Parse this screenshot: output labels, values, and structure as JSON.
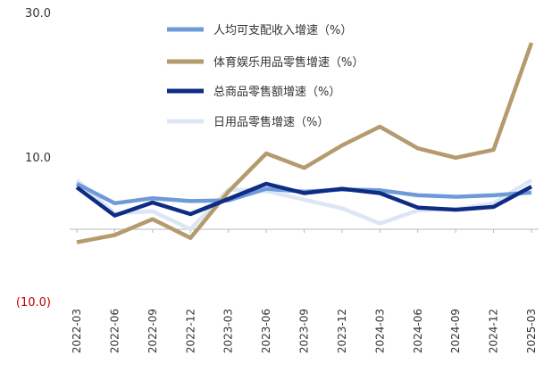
{
  "chart_data": {
    "type": "line",
    "title": "",
    "xlabel": "",
    "ylabel": "",
    "ylim": [
      -10,
      30
    ],
    "y_ticks": [
      {
        "value": 30,
        "label": "30.0"
      },
      {
        "value": 10,
        "label": "10.0"
      },
      {
        "value": -10,
        "label": "(10.0)"
      }
    ],
    "negative_tick_color": "#c00000",
    "grid": false,
    "legend_position": "top",
    "categories": [
      "2022-03",
      "2022-06",
      "2022-09",
      "2022-12",
      "2023-03",
      "2023-06",
      "2023-09",
      "2023-12",
      "2024-03",
      "2024-06",
      "2024-09",
      "2024-12",
      "2025-03"
    ],
    "series": [
      {
        "name": "人均可支配收入增速（%）",
        "color": "#6f9ad8",
        "values": [
          6.3,
          3.6,
          4.3,
          3.9,
          4.0,
          5.6,
          5.2,
          5.5,
          5.4,
          4.7,
          4.5,
          4.7,
          5.1
        ]
      },
      {
        "name": "体育娱乐用品零售增速（%）",
        "color": "#b59a6e",
        "values": [
          -1.8,
          -0.8,
          1.4,
          -1.2,
          5.2,
          10.5,
          8.5,
          11.6,
          14.2,
          11.2,
          9.9,
          11.0,
          25.8
        ]
      },
      {
        "name": "总商品零售额增速（%）",
        "color": "#0e2c84",
        "values": [
          5.8,
          1.9,
          3.7,
          2.1,
          4.2,
          6.3,
          5.0,
          5.6,
          5.0,
          3.0,
          2.7,
          3.1,
          5.9
        ]
      },
      {
        "name": "日用品零售增速（%）",
        "color": "#dde6f5",
        "values": [
          6.8,
          2.2,
          2.5,
          0.0,
          5.5,
          5.3,
          4.1,
          2.9,
          0.8,
          2.6,
          2.8,
          3.6,
          6.8
        ]
      }
    ]
  }
}
